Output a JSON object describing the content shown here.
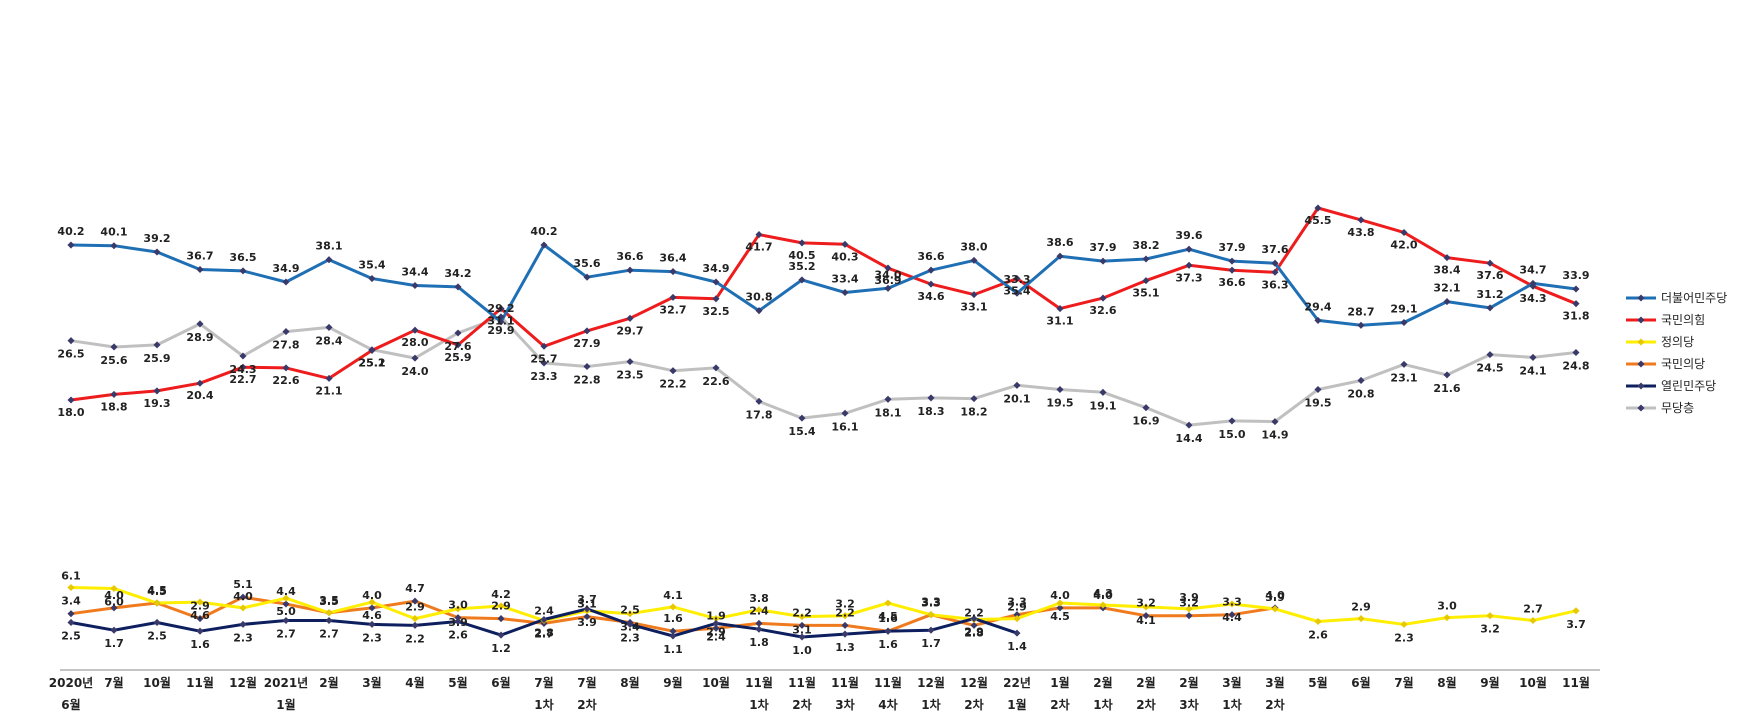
{
  "chart_data": {
    "type": "line",
    "title": "",
    "xlabel": "",
    "ylabel": "",
    "grid": false,
    "legend_position": "right",
    "categories": [
      [
        "2020년",
        "6월"
      ],
      [
        "7월"
      ],
      [
        "10월"
      ],
      [
        "11월"
      ],
      [
        "12월"
      ],
      [
        "2021년",
        "1월"
      ],
      [
        "2월"
      ],
      [
        "3월"
      ],
      [
        "4월"
      ],
      [
        "5월"
      ],
      [
        "6월"
      ],
      [
        "7월",
        "1차"
      ],
      [
        "7월",
        "2차"
      ],
      [
        "8월"
      ],
      [
        "9월"
      ],
      [
        "10월"
      ],
      [
        "11월",
        "1차"
      ],
      [
        "11월",
        "2차"
      ],
      [
        "11월",
        "3차"
      ],
      [
        "11월",
        "4차"
      ],
      [
        "12월",
        "1차"
      ],
      [
        "12월",
        "2차"
      ],
      [
        "22년",
        "1월"
      ],
      [
        "1월",
        "2차"
      ],
      [
        "2월",
        "1차"
      ],
      [
        "2월",
        "2차"
      ],
      [
        "2월",
        "3차"
      ],
      [
        "3월",
        "1차"
      ],
      [
        "3월",
        "2차"
      ],
      [
        "5월"
      ],
      [
        "6월"
      ],
      [
        "7월"
      ],
      [
        "8월"
      ],
      [
        "9월"
      ],
      [
        "10월"
      ],
      [
        "11월"
      ]
    ],
    "series": [
      {
        "name": "더불어민주당",
        "color": "#1f6fb5",
        "values": [
          40.2,
          40.1,
          39.2,
          36.7,
          36.5,
          34.9,
          38.1,
          35.4,
          34.4,
          34.2,
          29.2,
          40.2,
          35.6,
          36.6,
          36.4,
          34.9,
          30.8,
          35.2,
          33.4,
          34.0,
          36.6,
          38.0,
          33.3,
          38.6,
          37.9,
          38.2,
          39.6,
          37.9,
          37.6,
          29.4,
          28.7,
          29.1,
          32.1,
          31.2,
          34.7,
          33.9
        ]
      },
      {
        "name": "국민의힘",
        "color": "#ee1c1c",
        "values": [
          18.0,
          18.8,
          19.3,
          20.4,
          22.7,
          22.6,
          21.1,
          25.1,
          28.0,
          25.9,
          31.1,
          25.7,
          27.9,
          29.7,
          32.7,
          32.5,
          41.7,
          40.5,
          40.3,
          36.9,
          34.6,
          33.1,
          35.4,
          31.1,
          32.6,
          35.1,
          37.3,
          36.6,
          36.3,
          45.5,
          43.8,
          42.0,
          38.4,
          37.6,
          34.3,
          31.8
        ]
      },
      {
        "name": "정의당",
        "color": "#ffee00",
        "values": [
          6.1,
          6.0,
          4.5,
          4.6,
          4.0,
          5.0,
          3.5,
          4.6,
          2.9,
          3.9,
          4.2,
          2.7,
          3.7,
          3.4,
          4.1,
          2.9,
          3.8,
          3.1,
          3.2,
          4.5,
          3.3,
          2.8,
          2.9,
          4.5,
          4.3,
          4.1,
          3.9,
          4.4,
          3.9,
          2.6,
          2.9,
          2.3,
          3.0,
          3.2,
          2.7,
          3.7
        ]
      },
      {
        "name": "국민의당",
        "color": "#f07b1e",
        "values": [
          3.4,
          4.0,
          4.5,
          2.9,
          5.1,
          4.4,
          3.5,
          4.0,
          4.7,
          3.0,
          2.9,
          2.4,
          3.1,
          2.5,
          1.6,
          1.9,
          2.4,
          2.2,
          2.2,
          1.6,
          3.3,
          2.2,
          3.3,
          4.0,
          4.0,
          3.2,
          3.2,
          3.3,
          4.0,
          null,
          null,
          null,
          null,
          null,
          null,
          null
        ]
      },
      {
        "name": "열린민주당",
        "color": "#0d1f5e",
        "values": [
          2.5,
          1.7,
          2.5,
          1.6,
          2.3,
          2.7,
          2.7,
          2.3,
          2.2,
          2.6,
          1.2,
          2.8,
          3.9,
          2.3,
          1.1,
          2.4,
          1.8,
          1.0,
          1.3,
          1.6,
          1.7,
          2.9,
          1.4,
          null,
          null,
          null,
          null,
          null,
          null,
          null,
          null,
          null,
          null,
          null,
          null,
          null
        ]
      },
      {
        "name": "무당층",
        "color": "#c0c0c0",
        "values": [
          26.5,
          25.6,
          25.9,
          28.9,
          24.3,
          27.8,
          28.4,
          25.2,
          24.0,
          27.6,
          29.9,
          23.3,
          22.8,
          23.5,
          22.2,
          22.6,
          17.8,
          15.4,
          16.1,
          18.1,
          18.3,
          18.2,
          20.1,
          19.5,
          19.1,
          16.9,
          14.4,
          15.0,
          14.9,
          19.5,
          20.8,
          23.1,
          21.6,
          24.5,
          24.1,
          24.8
        ]
      }
    ]
  }
}
